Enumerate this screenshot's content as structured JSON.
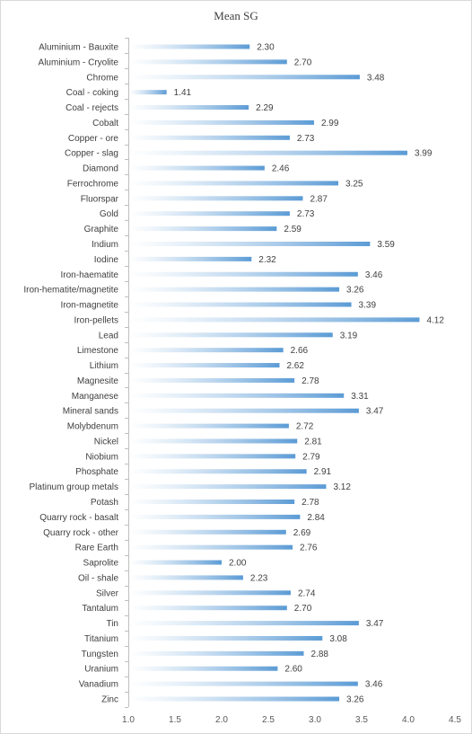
{
  "chart_data": {
    "type": "bar",
    "orientation": "horizontal",
    "title": "Mean SG",
    "xlabel": "",
    "ylabel": "",
    "categories": [
      "Aluminium - Bauxite",
      "Aluminium - Cryolite",
      "Chrome",
      "Coal - coking",
      "Coal - rejects",
      "Cobalt",
      "Copper - ore",
      "Copper - slag",
      "Diamond",
      "Ferrochrome",
      "Fluorspar",
      "Gold",
      "Graphite",
      "Indium",
      "Iodine",
      "Iron-haematite",
      "Iron-hematite/magnetite",
      "Iron-magnetite",
      "Iron-pellets",
      "Lead",
      "Limestone",
      "Lithium",
      "Magnesite",
      "Manganese",
      "Mineral sands",
      "Molybdenum",
      "Nickel",
      "Niobium",
      "Phosphate",
      "Platinum group metals",
      "Potash",
      "Quarry rock - basalt",
      "Quarry rock - other",
      "Rare Earth",
      "Saprolite",
      "Oil - shale",
      "Silver",
      "Tantalum",
      "Tin",
      "Titanium",
      "Tungsten",
      "Uranium",
      "Vanadium",
      "Zinc"
    ],
    "values": [
      2.3,
      2.7,
      3.48,
      1.41,
      2.29,
      2.99,
      2.73,
      3.99,
      2.46,
      3.25,
      2.87,
      2.73,
      2.59,
      3.59,
      2.32,
      3.46,
      3.26,
      3.39,
      4.12,
      3.19,
      2.66,
      2.62,
      2.78,
      3.31,
      3.47,
      2.72,
      2.81,
      2.79,
      2.91,
      3.12,
      2.78,
      2.84,
      2.69,
      2.76,
      2.0,
      2.23,
      2.74,
      2.7,
      3.47,
      3.08,
      2.88,
      2.6,
      3.46,
      3.26
    ],
    "value_labels": [
      "2.30",
      "2.70",
      "3.48",
      "1.41",
      "2.29",
      "2.99",
      "2.73",
      "3.99",
      "2.46",
      "3.25",
      "2.87",
      "2.73",
      "2.59",
      "3.59",
      "2.32",
      "3.46",
      "3.26",
      "3.39",
      "4.12",
      "3.19",
      "2.66",
      "2.62",
      "2.78",
      "3.31",
      "3.47",
      "2.72",
      "2.81",
      "2.79",
      "2.91",
      "3.12",
      "2.78",
      "2.84",
      "2.69",
      "2.76",
      "2.00",
      "2.23",
      "2.74",
      "2.70",
      "3.47",
      "3.08",
      "2.88",
      "2.60",
      "3.46",
      "3.26"
    ],
    "xlim": [
      1.0,
      4.5
    ],
    "xticks": [
      "1.0",
      "1.5",
      "2.0",
      "2.5",
      "3.0",
      "3.5",
      "4.0",
      "4.5"
    ],
    "grid": false,
    "legend": "none",
    "bar_color": "#5b9bd5"
  }
}
